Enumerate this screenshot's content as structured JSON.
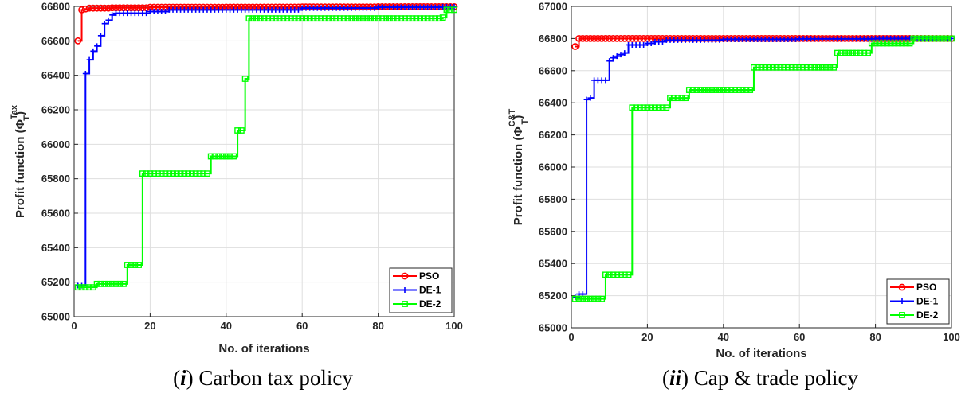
{
  "chart_data": [
    {
      "type": "line",
      "caption_prefix": "(",
      "caption_numeral": "i",
      "caption_suffix": ") Carbon tax policy",
      "ylabel_main": "Profit function (Φ",
      "ylabel_sup": "Tax",
      "ylabel_sub": "T",
      "ylabel_end": ")",
      "xlabel": "No. of iterations",
      "xlim": [
        0,
        100
      ],
      "ylim": [
        65000,
        66800
      ],
      "xticks": [
        "0",
        "20",
        "40",
        "60",
        "80",
        "100"
      ],
      "yticks": [
        "65000",
        "65200",
        "65400",
        "65600",
        "65800",
        "66000",
        "66200",
        "66400",
        "66600",
        "66800"
      ],
      "grid": true,
      "legend": "bottom-right",
      "series": [
        {
          "name": "PSO",
          "color": "#ff0000",
          "marker": "circle",
          "x": [
            1,
            2,
            3,
            4,
            5,
            10,
            20,
            40,
            60,
            80,
            100
          ],
          "y": [
            66600,
            66780,
            66785,
            66790,
            66790,
            66792,
            66795,
            66796,
            66797,
            66798,
            66798
          ]
        },
        {
          "name": "DE-1",
          "color": "#0000ff",
          "marker": "plus",
          "x": [
            1,
            2,
            3,
            4,
            5,
            6,
            7,
            8,
            9,
            10,
            11,
            15,
            20,
            22,
            25,
            40,
            60,
            80,
            97,
            100
          ],
          "y": [
            65180,
            65180,
            66410,
            66490,
            66540,
            66570,
            66630,
            66700,
            66720,
            66750,
            66760,
            66760,
            66770,
            66770,
            66780,
            66780,
            66790,
            66795,
            66798,
            66798
          ]
        },
        {
          "name": "DE-2",
          "color": "#00ff00",
          "marker": "square",
          "x": [
            1,
            5,
            6,
            13,
            14,
            17,
            18,
            35,
            36,
            42,
            43,
            45,
            46,
            97,
            98,
            100
          ],
          "y": [
            65170,
            65170,
            65190,
            65190,
            65300,
            65300,
            65830,
            65830,
            65930,
            65930,
            66080,
            66380,
            66730,
            66735,
            66780,
            66780
          ]
        }
      ]
    },
    {
      "type": "line",
      "caption_prefix": "(",
      "caption_numeral": "ii",
      "caption_suffix": ") Cap & trade policy",
      "ylabel_main": "Profit function (Φ",
      "ylabel_sup": "C&T",
      "ylabel_sub": "T",
      "ylabel_end": ")",
      "xlabel": "No. of iterations",
      "xlim": [
        0,
        100
      ],
      "ylim": [
        65000,
        67000
      ],
      "xticks": [
        "0",
        "20",
        "40",
        "60",
        "80",
        "100"
      ],
      "yticks": [
        "65000",
        "65200",
        "65400",
        "65600",
        "65800",
        "66000",
        "66200",
        "66400",
        "66600",
        "66800",
        "67000"
      ],
      "grid": true,
      "legend": "bottom-right",
      "series": [
        {
          "name": "PSO",
          "color": "#ff0000",
          "marker": "circle",
          "x": [
            1,
            2,
            5,
            20,
            40,
            60,
            80,
            100
          ],
          "y": [
            66750,
            66800,
            66800,
            66800,
            66800,
            66800,
            66800,
            66800
          ]
        },
        {
          "name": "DE-1",
          "color": "#0000ff",
          "marker": "plus",
          "x": [
            1,
            2,
            3,
            4,
            5,
            6,
            8,
            9,
            10,
            11,
            12,
            13,
            14,
            15,
            16,
            17,
            20,
            22,
            25,
            40,
            60,
            80,
            100
          ],
          "y": [
            65190,
            65210,
            65210,
            66420,
            66430,
            66540,
            66540,
            66540,
            66660,
            66680,
            66690,
            66700,
            66710,
            66760,
            66760,
            66760,
            66770,
            66780,
            66790,
            66795,
            66798,
            66800,
            66800
          ]
        },
        {
          "name": "DE-2",
          "color": "#00ff00",
          "marker": "square",
          "x": [
            1,
            8,
            9,
            15,
            16,
            25,
            26,
            30,
            31,
            47,
            48,
            69,
            70,
            78,
            79,
            89,
            90,
            100
          ],
          "y": [
            65180,
            65180,
            65330,
            65330,
            66370,
            66370,
            66430,
            66430,
            66480,
            66480,
            66620,
            66620,
            66710,
            66710,
            66770,
            66770,
            66800,
            66800
          ]
        }
      ]
    }
  ]
}
